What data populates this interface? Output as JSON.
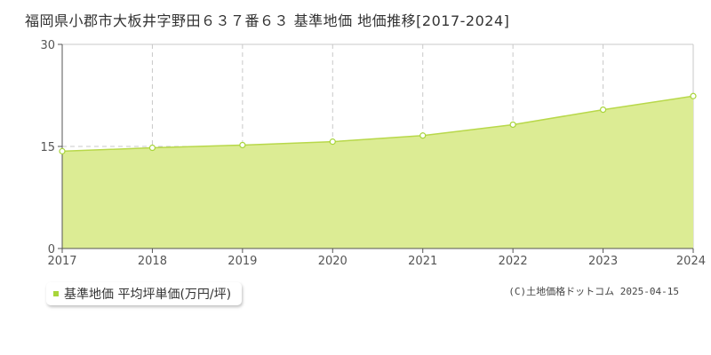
{
  "title": "福岡県小郡市大板井字野田６３７番６３ 基準地価 地価推移[2017-2024]",
  "legend": {
    "label": "基準地価 平均坪単価(万円/坪)"
  },
  "copyright": "(C)土地価格ドットコム 2025-04-15",
  "colors": {
    "fill": "#dcec94",
    "line": "#b8d84a",
    "marker": "#a8d53a",
    "grid": "#c8c8c8"
  },
  "chart_data": {
    "type": "area",
    "title": "福岡県小郡市大板井字野田６３７番６３ 基準地価 地価推移[2017-2024]",
    "categories": [
      "2017",
      "2018",
      "2019",
      "2020",
      "2021",
      "2022",
      "2023",
      "2024"
    ],
    "series": [
      {
        "name": "基準地価 平均坪単価(万円/坪)",
        "values": [
          14.3,
          14.8,
          15.2,
          15.7,
          16.6,
          18.2,
          20.4,
          22.4
        ]
      }
    ],
    "yticks": [
      0,
      15,
      30
    ],
    "ylim": [
      0,
      30
    ],
    "grid": true,
    "legend_position": "bottom-left"
  }
}
